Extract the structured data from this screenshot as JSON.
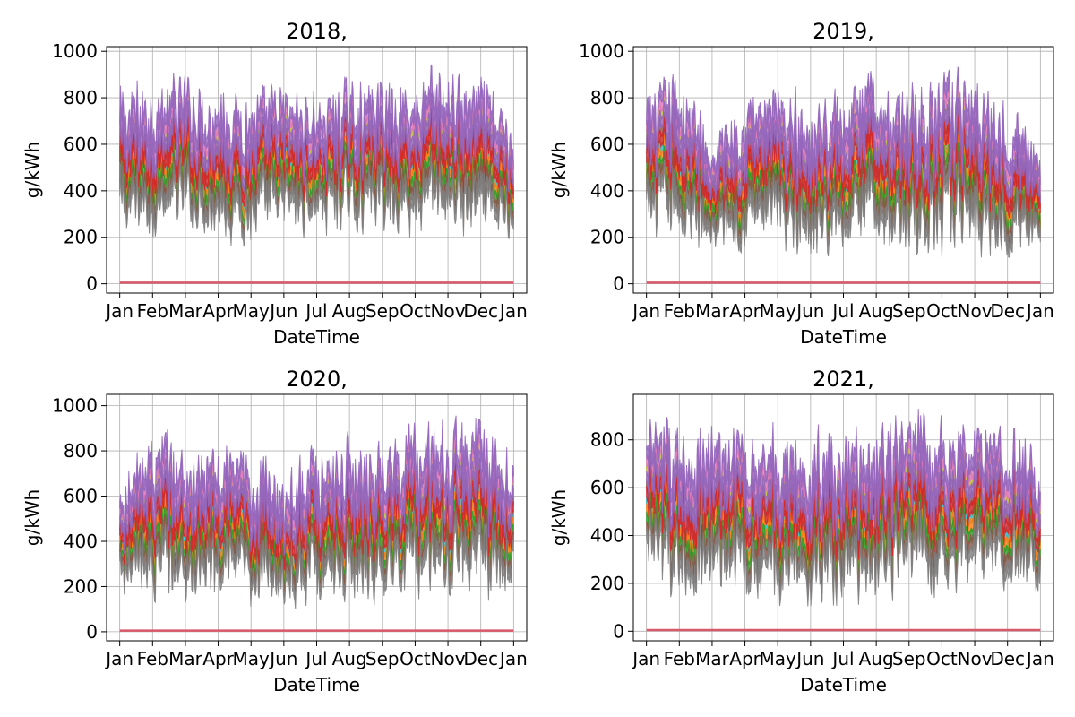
{
  "chart_data": [
    {
      "type": "line",
      "title": "2018,",
      "xlabel": "DateTime",
      "ylabel": "g/kWh",
      "ylim": [
        -40,
        1020
      ],
      "yticks": [
        0,
        200,
        400,
        600,
        800,
        1000
      ],
      "xticks": [
        "Jan",
        "Feb",
        "Mar",
        "Apr",
        "May",
        "Jun",
        "Jul",
        "Aug",
        "Sep",
        "Oct",
        "Nov",
        "Dec",
        "Jan"
      ],
      "grid": true,
      "envelope": {
        "months": [
          1,
          2,
          3,
          4,
          5,
          6,
          7,
          8,
          9,
          10,
          11,
          12,
          13
        ],
        "upper": [
          840,
          900,
          910,
          890,
          830,
          860,
          840,
          880,
          900,
          920,
          940,
          890,
          740
        ],
        "lower": [
          180,
          190,
          200,
          170,
          160,
          180,
          200,
          210,
          200,
          190,
          210,
          140,
          170
        ],
        "baseline": 5
      }
    },
    {
      "type": "line",
      "title": "2019,",
      "xlabel": "DateTime",
      "ylabel": "g/kWh",
      "ylim": [
        -40,
        1020
      ],
      "yticks": [
        0,
        200,
        400,
        600,
        800,
        1000
      ],
      "xticks": [
        "Jan",
        "Feb",
        "Mar",
        "Apr",
        "May",
        "Jun",
        "Jul",
        "Aug",
        "Sep",
        "Oct",
        "Nov",
        "Dec",
        "Jan"
      ],
      "grid": true,
      "envelope": {
        "months": [
          1,
          2,
          3,
          4,
          5,
          6,
          7,
          8,
          9,
          10,
          11,
          12,
          13
        ],
        "upper": [
          830,
          940,
          640,
          870,
          830,
          840,
          880,
          920,
          880,
          900,
          930,
          820,
          650
        ],
        "lower": [
          160,
          150,
          110,
          140,
          120,
          110,
          100,
          120,
          110,
          100,
          120,
          110,
          160
        ],
        "baseline": 5
      }
    },
    {
      "type": "line",
      "title": "2020,",
      "xlabel": "DateTime",
      "ylabel": "g/kWh",
      "ylim": [
        -40,
        1050
      ],
      "yticks": [
        0,
        200,
        400,
        600,
        800,
        1000
      ],
      "xticks": [
        "Jan",
        "Feb",
        "Mar",
        "Apr",
        "May",
        "Jun",
        "Jul",
        "Aug",
        "Sep",
        "Oct",
        "Nov",
        "Dec",
        "Jan"
      ],
      "grid": true,
      "envelope": {
        "months": [
          1,
          2,
          3,
          4,
          5,
          6,
          7,
          8,
          9,
          10,
          11,
          12,
          13
        ],
        "upper": [
          650,
          930,
          840,
          820,
          780,
          760,
          820,
          880,
          880,
          920,
          940,
          990,
          760
        ],
        "lower": [
          150,
          110,
          100,
          100,
          100,
          100,
          100,
          110,
          120,
          130,
          130,
          140,
          110
        ],
        "baseline": 5
      }
    },
    {
      "type": "line",
      "title": "2021,",
      "xlabel": "DateTime",
      "ylabel": "g/kWh",
      "ylim": [
        -40,
        990
      ],
      "yticks": [
        0,
        200,
        400,
        600,
        800
      ],
      "xticks": [
        "Jan",
        "Feb",
        "Mar",
        "Apr",
        "May",
        "Jun",
        "Jul",
        "Aug",
        "Sep",
        "Oct",
        "Nov",
        "Dec",
        "Jan"
      ],
      "grid": true,
      "envelope": {
        "months": [
          1,
          2,
          3,
          4,
          5,
          6,
          7,
          8,
          9,
          10,
          11,
          12,
          13
        ],
        "upper": [
          880,
          890,
          850,
          880,
          860,
          850,
          860,
          870,
          920,
          930,
          900,
          910,
          720
        ],
        "lower": [
          150,
          120,
          110,
          110,
          100,
          110,
          110,
          110,
          120,
          140,
          150,
          150,
          110
        ],
        "baseline": 5
      }
    }
  ],
  "colors": {
    "series_palette": [
      "#1f77b4",
      "#ff7f0e",
      "#2ca02c",
      "#d62728",
      "#9467bd",
      "#8c564b",
      "#e377c2",
      "#7f7f7f",
      "#bcbd22",
      "#17becf"
    ],
    "baseline": "#d9596a",
    "grid": "#b0b0b0",
    "axis": "#000000"
  }
}
